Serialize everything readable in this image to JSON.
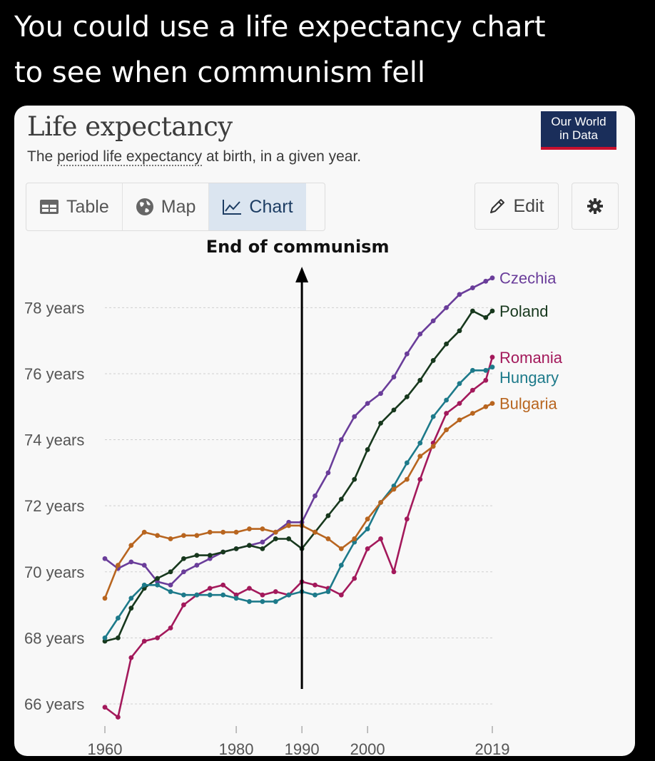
{
  "caption": {
    "line1": "You could use a life expectancy chart",
    "line2": "to see when communism fell"
  },
  "header": {
    "title": "Life expectancy",
    "subtitle_pre": "The ",
    "subtitle_link": "period life expectancy",
    "subtitle_post": " at birth, in a given year.",
    "logo_line1": "Our World",
    "logo_line2": "in Data"
  },
  "tabs": [
    {
      "label": "Table",
      "icon": "table-icon",
      "active": false
    },
    {
      "label": "Map",
      "icon": "globe-icon",
      "active": false
    },
    {
      "label": "Chart",
      "icon": "line-chart-icon",
      "active": true
    }
  ],
  "toolbar": {
    "edit_label": "Edit",
    "settings_icon": "gear-icon"
  },
  "colors": {
    "Czechia": "#6a3d9a",
    "Poland": "#17381d",
    "Romania": "#a3195b",
    "Hungary": "#1d7a8a",
    "Bulgaria": "#b8651f"
  },
  "chart_data": {
    "type": "line",
    "title": "Life expectancy",
    "ylim": [
      65.2,
      79.8
    ],
    "xlim": [
      1960,
      2019
    ],
    "yticks": [
      66,
      68,
      70,
      72,
      74,
      76,
      78
    ],
    "ytick_labels": [
      "66 years",
      "68 years",
      "70 years",
      "72 years",
      "74 years",
      "76 years",
      "78 years"
    ],
    "xticks": [
      1960,
      1980,
      1990,
      2000,
      2019
    ],
    "grid": true,
    "legend": "right-end labels",
    "annotation": {
      "text": "End of communism",
      "x": 1990
    },
    "x": [
      1960,
      1962,
      1964,
      1966,
      1968,
      1970,
      1972,
      1974,
      1976,
      1978,
      1980,
      1982,
      1984,
      1986,
      1988,
      1990,
      1992,
      1994,
      1996,
      1998,
      2000,
      2002,
      2004,
      2006,
      2008,
      2010,
      2012,
      2014,
      2016,
      2018,
      2019
    ],
    "series": [
      {
        "name": "Czechia",
        "values": [
          70.4,
          70.1,
          70.3,
          70.2,
          69.7,
          69.6,
          70.0,
          70.2,
          70.4,
          70.6,
          70.7,
          70.8,
          70.9,
          71.2,
          71.5,
          71.5,
          72.3,
          73.0,
          74.0,
          74.7,
          75.1,
          75.4,
          75.9,
          76.6,
          77.2,
          77.6,
          78.0,
          78.4,
          78.6,
          78.8,
          78.9
        ]
      },
      {
        "name": "Poland",
        "values": [
          67.9,
          68.0,
          68.9,
          69.5,
          69.8,
          70.0,
          70.4,
          70.5,
          70.5,
          70.6,
          70.7,
          70.8,
          70.7,
          71.0,
          71.0,
          70.7,
          71.2,
          71.7,
          72.2,
          72.8,
          73.7,
          74.5,
          74.9,
          75.3,
          75.8,
          76.4,
          76.9,
          77.3,
          77.9,
          77.7,
          77.9
        ]
      },
      {
        "name": "Romania",
        "values": [
          65.9,
          65.6,
          67.4,
          67.9,
          68.0,
          68.3,
          69.0,
          69.3,
          69.5,
          69.6,
          69.3,
          69.5,
          69.3,
          69.4,
          69.3,
          69.7,
          69.6,
          69.5,
          69.3,
          69.8,
          70.7,
          71.0,
          70.0,
          71.6,
          72.8,
          73.9,
          74.8,
          75.1,
          75.5,
          75.8,
          76.5
        ]
      },
      {
        "name": "Hungary",
        "values": [
          68.0,
          68.6,
          69.2,
          69.6,
          69.6,
          69.4,
          69.3,
          69.3,
          69.3,
          69.3,
          69.2,
          69.1,
          69.1,
          69.1,
          69.3,
          69.4,
          69.3,
          69.4,
          70.2,
          70.9,
          71.3,
          72.1,
          72.6,
          73.3,
          73.9,
          74.7,
          75.2,
          75.7,
          76.1,
          76.1,
          76.2
        ]
      },
      {
        "name": "Bulgaria",
        "values": [
          69.2,
          70.2,
          70.8,
          71.2,
          71.1,
          71.0,
          71.1,
          71.1,
          71.2,
          71.2,
          71.2,
          71.3,
          71.3,
          71.2,
          71.4,
          71.4,
          71.2,
          71.0,
          70.7,
          71.0,
          71.6,
          72.1,
          72.5,
          72.8,
          73.5,
          73.8,
          74.3,
          74.6,
          74.8,
          75.0,
          75.1
        ]
      }
    ]
  }
}
